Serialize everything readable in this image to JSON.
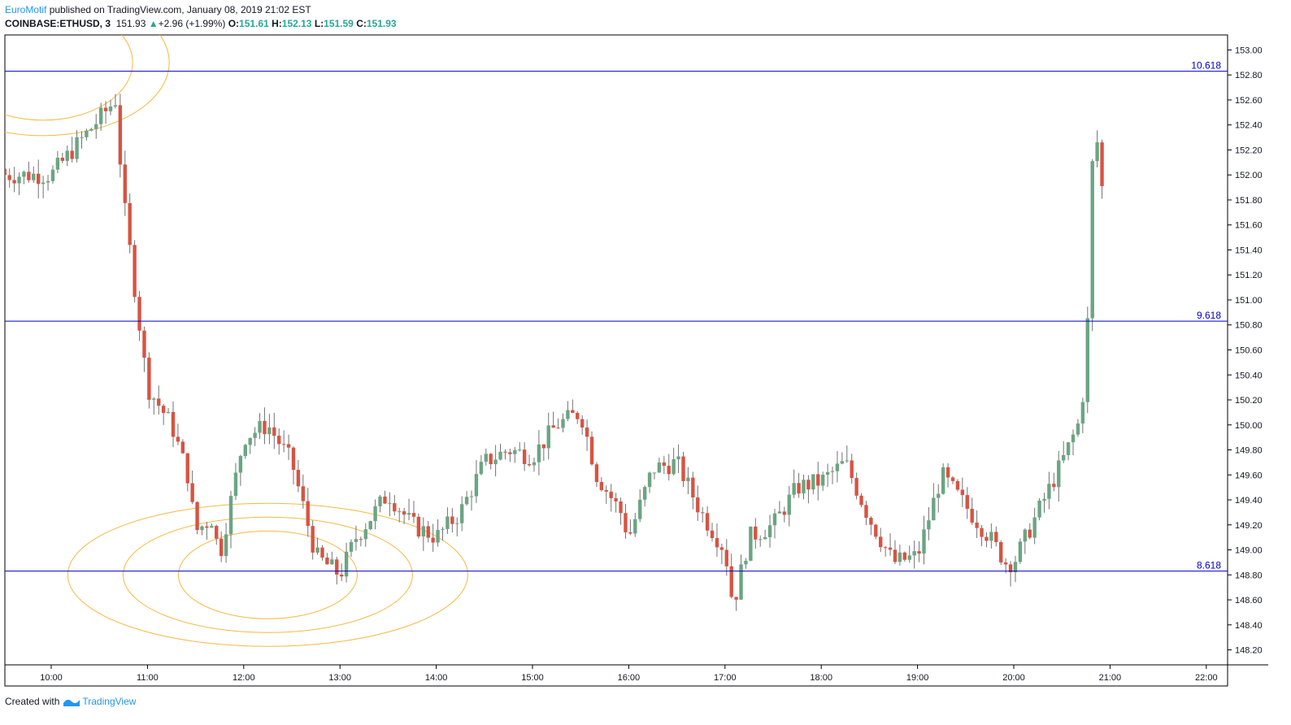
{
  "header": {
    "author": "EuroMotif",
    "published_text": "published on TradingView.com, January 08, 2019 21:02 EST",
    "symbol": "COINBASE:ETHUSD, 3",
    "price": "151.93",
    "change": "+2.96 (+1.99%)",
    "open_label": "O:",
    "open": "151.61",
    "high_label": "H:",
    "high": "152.13",
    "low_label": "L:",
    "low": "151.59",
    "close_label": "C:",
    "close": "151.93"
  },
  "footer": {
    "created_with": "Created with",
    "brand": "TradingView"
  },
  "colors": {
    "up": "#6ba583",
    "down": "#d75442",
    "wick": "#737375",
    "level_line": "#0000cc",
    "fib_circle": "#f5b942",
    "author": "#2196f3",
    "up_text": "#26a69a"
  },
  "chart_data": {
    "type": "candlestick",
    "y_axis": {
      "min": 148.08,
      "max": 153.12,
      "ticks": [
        "153.00",
        "152.80",
        "152.60",
        "152.40",
        "152.20",
        "152.00",
        "151.80",
        "151.60",
        "151.40",
        "151.20",
        "151.00",
        "150.80",
        "150.60",
        "150.40",
        "150.20",
        "150.00",
        "149.80",
        "149.60",
        "149.40",
        "149.20",
        "149.00",
        "148.80",
        "148.60",
        "148.40",
        "148.20"
      ]
    },
    "x_axis": {
      "ticks": [
        "10:00",
        "11:00",
        "12:00",
        "13:00",
        "14:00",
        "15:00",
        "16:00",
        "17:00",
        "18:00",
        "19:00",
        "20:00",
        "21:00",
        "22:00"
      ]
    },
    "levels": [
      {
        "label": "10.618",
        "value": 152.83
      },
      {
        "label": "9.618",
        "value": 150.83
      },
      {
        "label": "8.618",
        "value": 148.83
      }
    ],
    "anchors": [
      {
        "time": "10:00",
        "close": 152.0
      },
      {
        "time": "10:40",
        "close": 152.6
      },
      {
        "time": "10:45",
        "close": 151.8
      },
      {
        "time": "11:00",
        "close": 150.3
      },
      {
        "time": "11:15",
        "close": 150.0
      },
      {
        "time": "11:25",
        "close": 149.6
      },
      {
        "time": "11:30",
        "close": 149.15
      },
      {
        "time": "11:40",
        "close": 149.25
      },
      {
        "time": "11:45",
        "close": 148.95
      },
      {
        "time": "12:00",
        "close": 149.9
      },
      {
        "time": "12:15",
        "close": 150.0
      },
      {
        "time": "12:30",
        "close": 149.7
      },
      {
        "time": "12:45",
        "close": 148.95
      },
      {
        "time": "13:00",
        "close": 148.8
      },
      {
        "time": "13:10",
        "close": 149.1
      },
      {
        "time": "13:30",
        "close": 149.45
      },
      {
        "time": "13:45",
        "close": 149.2
      },
      {
        "time": "14:00",
        "close": 149.1
      },
      {
        "time": "14:15",
        "close": 149.3
      },
      {
        "time": "14:30",
        "close": 149.7
      },
      {
        "time": "14:45",
        "close": 149.8
      },
      {
        "time": "15:00",
        "close": 149.75
      },
      {
        "time": "15:15",
        "close": 150.0
      },
      {
        "time": "15:30",
        "close": 150.1
      },
      {
        "time": "15:40",
        "close": 149.6
      },
      {
        "time": "15:55",
        "close": 149.3
      },
      {
        "time": "16:00",
        "close": 149.1
      },
      {
        "time": "16:15",
        "close": 149.65
      },
      {
        "time": "16:30",
        "close": 149.7
      },
      {
        "time": "16:45",
        "close": 149.3
      },
      {
        "time": "17:00",
        "close": 149.0
      },
      {
        "time": "17:05",
        "close": 148.55
      },
      {
        "time": "17:15",
        "close": 149.1
      },
      {
        "time": "17:30",
        "close": 149.2
      },
      {
        "time": "17:45",
        "close": 149.5
      },
      {
        "time": "18:00",
        "close": 149.55
      },
      {
        "time": "18:15",
        "close": 149.7
      },
      {
        "time": "18:30",
        "close": 149.25
      },
      {
        "time": "18:45",
        "close": 148.9
      },
      {
        "time": "19:00",
        "close": 148.95
      },
      {
        "time": "19:15",
        "close": 149.6
      },
      {
        "time": "19:30",
        "close": 149.35
      },
      {
        "time": "19:45",
        "close": 149.1
      },
      {
        "time": "19:55",
        "close": 148.9
      },
      {
        "time": "20:00",
        "close": 148.9
      },
      {
        "time": "20:15",
        "close": 149.3
      },
      {
        "time": "20:30",
        "close": 149.7
      },
      {
        "time": "20:40",
        "close": 150.0
      },
      {
        "time": "20:45",
        "close": 150.4
      },
      {
        "time": "20:50",
        "close": 152.5
      },
      {
        "time": "20:55",
        "close": 151.9
      }
    ],
    "fib_circles": [
      {
        "center_time": "12:15",
        "center_price": 148.8
      },
      {
        "center_time": "9:55",
        "center_price": 152.9
      }
    ]
  }
}
